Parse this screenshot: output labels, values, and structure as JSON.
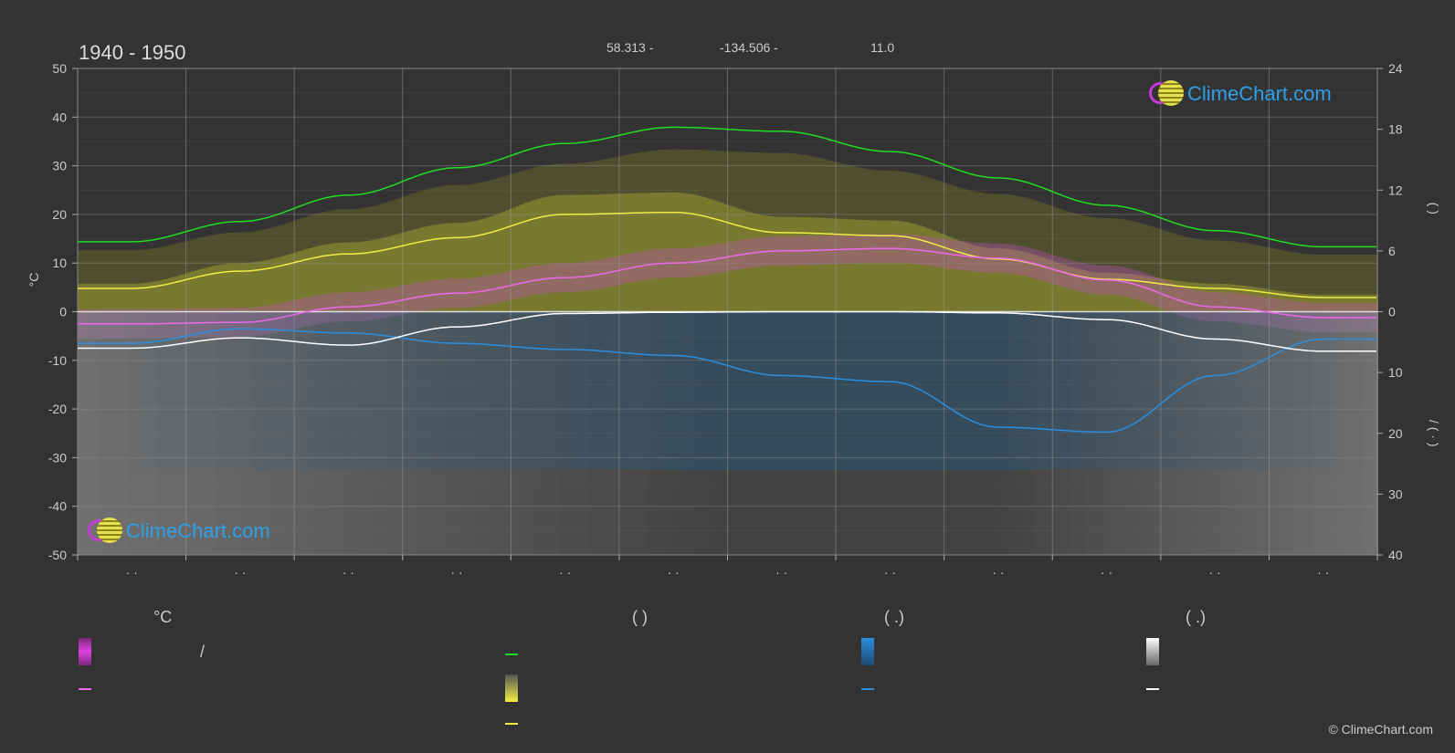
{
  "header": {
    "title": "1940 - 1950",
    "lat": "58.313 -",
    "lon": "-134.506 -",
    "elev": "11.0"
  },
  "legend": {
    "col1_head": "°C",
    "col2_head": "(           )",
    "col3_head": "(   .)",
    "col4_head": "(   .)",
    "slash": "/"
  },
  "logo_text": "ClimeChart.com",
  "copyright": "© ClimeChart.com",
  "colors": {
    "background": "#333333",
    "daylight": "#22dd22",
    "sunshine": "#eeee44",
    "temp_mean": "#ee66ee",
    "rain": "#2a8fe0",
    "snow": "#ffffff"
  },
  "chart_data": {
    "type": "line",
    "x": [
      0,
      1,
      2,
      3,
      4,
      5,
      6,
      7,
      8,
      9,
      10,
      11
    ],
    "x_tick_labels": [
      "· ·",
      "· ·",
      "· ·",
      "· ·",
      "· ·",
      "· ·",
      "· ·",
      "· ·",
      "· ·",
      "· ·",
      "· ·",
      "· ·"
    ],
    "ylim_left": [
      -50,
      50
    ],
    "yticks_left": [
      50,
      40,
      30,
      20,
      10,
      0,
      -10,
      -20,
      -30,
      -40,
      -50
    ],
    "ylabel_left": "°C",
    "ylim_right_top": [
      0,
      24
    ],
    "yticks_right_top": [
      24,
      18,
      12,
      6,
      0
    ],
    "ylim_right_bottom": [
      0,
      40
    ],
    "yticks_right_bottom": [
      10,
      20,
      30,
      40
    ],
    "ylabel_right_top": "(     )",
    "ylabel_right_bottom": "/     (  ·  )",
    "series": [
      {
        "key": "daylight",
        "axis": "hours",
        "values": [
          6.9,
          8.9,
          11.5,
          14.2,
          16.6,
          18.2,
          17.8,
          15.8,
          13.2,
          10.5,
          8.0,
          6.4
        ]
      },
      {
        "key": "sunshine",
        "axis": "hours",
        "values": [
          2.3,
          4.0,
          5.7,
          7.3,
          9.6,
          9.8,
          7.8,
          7.5,
          5.2,
          3.2,
          2.3,
          1.4
        ]
      },
      {
        "key": "temp_mean",
        "axis": "temp",
        "values": [
          -2.5,
          -2.2,
          1.0,
          3.8,
          7.0,
          10.0,
          12.5,
          13.0,
          11.0,
          6.5,
          1.0,
          -1.2
        ]
      },
      {
        "key": "rain",
        "axis": "precip",
        "values": [
          5.2,
          2.8,
          3.5,
          5.2,
          6.2,
          7.2,
          10.5,
          11.5,
          19.0,
          19.8,
          10.5,
          4.5
        ]
      },
      {
        "key": "snow",
        "axis": "precip",
        "values": [
          6.0,
          4.3,
          5.5,
          2.5,
          0.3,
          0.1,
          0.0,
          0.0,
          0.2,
          1.3,
          4.5,
          6.5
        ]
      }
    ]
  }
}
